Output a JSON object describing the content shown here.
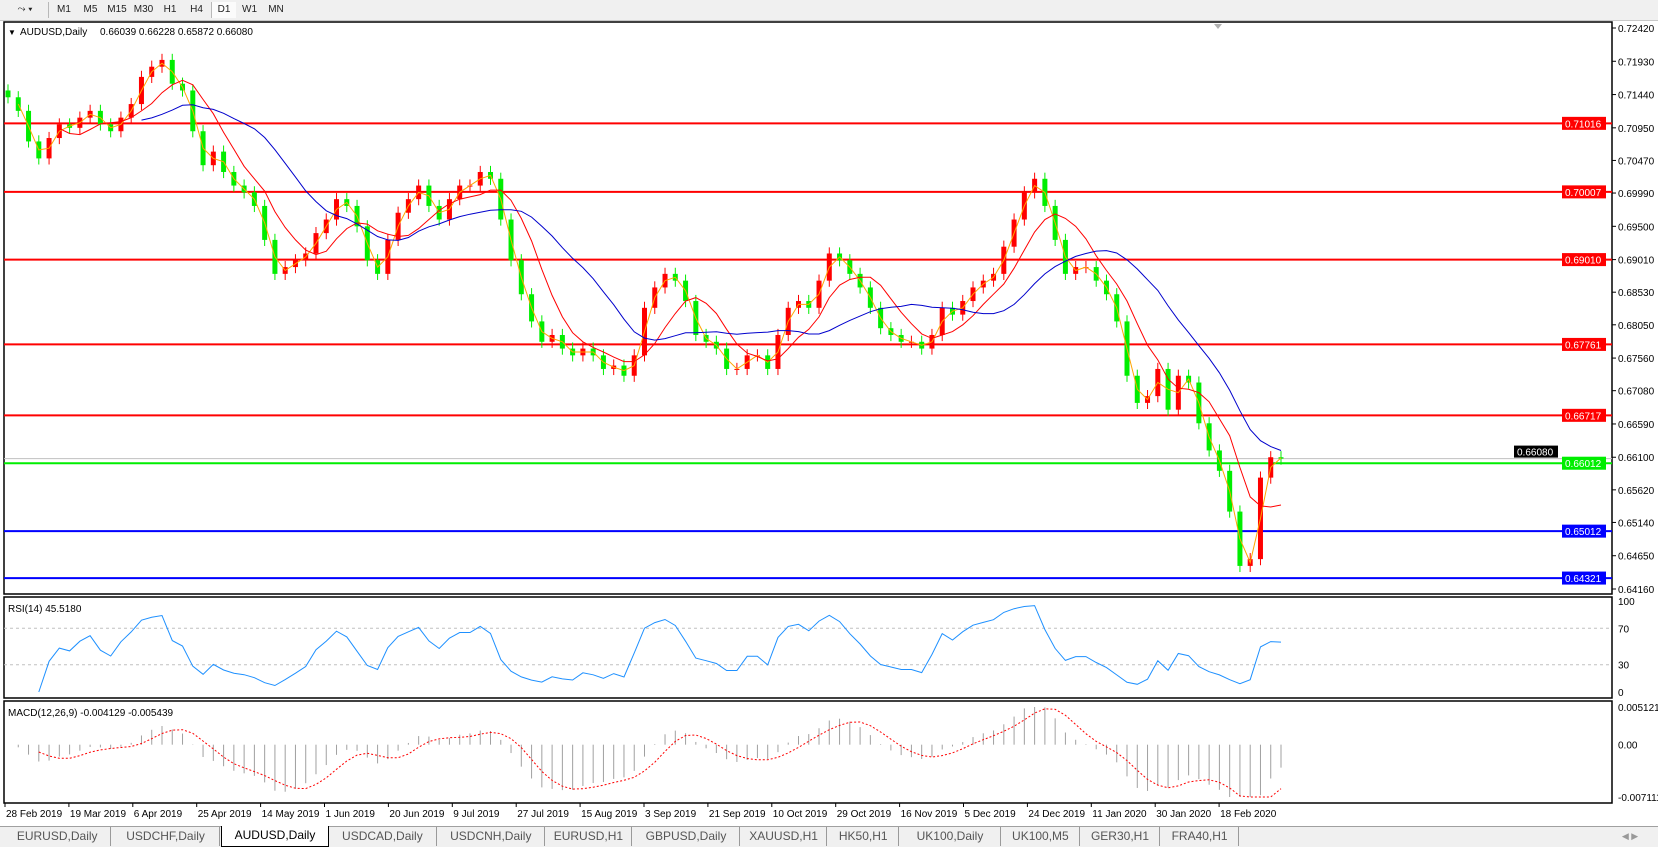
{
  "toolbar": {
    "tool_icon": "line-tools-icon",
    "timeframes": [
      "M1",
      "M5",
      "M15",
      "M30",
      "H1",
      "H4",
      "D1",
      "W1",
      "MN"
    ],
    "active_timeframe": "D1"
  },
  "chart_data": {
    "type": "candlestick",
    "title": "AUDUSD,Daily",
    "ohlc_readout": "0.66039 0.66228 0.65872 0.66080",
    "bullish_color": "#ff0000",
    "bearish_color": "#00ee00",
    "close_samples": [
      0.714,
      0.712,
      0.7075,
      0.705,
      0.708,
      0.71,
      0.7095,
      0.711,
      0.712,
      0.71,
      0.709,
      0.711,
      0.713,
      0.717,
      0.7185,
      0.7195,
      0.716,
      0.715,
      0.709,
      0.704,
      0.706,
      0.703,
      0.701,
      0.7,
      0.698,
      0.693,
      0.688,
      0.689,
      0.69,
      0.691,
      0.694,
      0.696,
      0.699,
      0.698,
      0.695,
      0.69,
      0.688,
      0.693,
      0.697,
      0.699,
      0.701,
      0.698,
      0.696,
      0.699,
      0.701,
      0.701,
      0.703,
      0.702,
      0.696,
      0.69,
      0.685,
      0.681,
      0.678,
      0.679,
      0.677,
      0.676,
      0.677,
      0.676,
      0.674,
      0.6745,
      0.673,
      0.676,
      0.683,
      0.686,
      0.688,
      0.687,
      0.684,
      0.679,
      0.678,
      0.677,
      0.674,
      0.674,
      0.676,
      0.676,
      0.674,
      0.679,
      0.683,
      0.684,
      0.683,
      0.687,
      0.691,
      0.69,
      0.688,
      0.686,
      0.683,
      0.68,
      0.679,
      0.678,
      0.678,
      0.677,
      0.679,
      0.683,
      0.682,
      0.684,
      0.686,
      0.687,
      0.688,
      0.692,
      0.696,
      0.7,
      0.702,
      0.698,
      0.693,
      0.688,
      0.689,
      0.689,
      0.687,
      0.685,
      0.681,
      0.673,
      0.669,
      0.67,
      0.674,
      0.668,
      0.673,
      0.672,
      0.666,
      0.662,
      0.659,
      0.653,
      0.645,
      0.646,
      0.658,
      0.661,
      0.6608
    ],
    "ma_colors": [
      "#ffa500",
      "#ff0000",
      "#0000cc"
    ],
    "y_axis": {
      "range": [
        0.6416,
        0.7242
      ],
      "ticks": [
        "0.72420",
        "0.71930",
        "0.71440",
        "0.70950",
        "0.70470",
        "0.69990",
        "0.69500",
        "0.69010",
        "0.68530",
        "0.68050",
        "0.67560",
        "0.67080",
        "0.66590",
        "0.66100",
        "0.65620",
        "0.65140",
        "0.64650",
        "0.64160"
      ]
    },
    "x_axis": {
      "ticks": [
        "28 Feb 2019",
        "19 Mar 2019",
        "6 Apr 2019",
        "25 Apr 2019",
        "14 May 2019",
        "1 Jun 2019",
        "20 Jun 2019",
        "9 Jul 2019",
        "27 Jul 2019",
        "15 Aug 2019",
        "3 Sep 2019",
        "21 Sep 2019",
        "10 Oct 2019",
        "29 Oct 2019",
        "16 Nov 2019",
        "5 Dec 2019",
        "24 Dec 2019",
        "11 Jan 2020",
        "30 Jan 2020",
        "18 Feb 2020"
      ]
    },
    "levels": [
      {
        "price": 0.71016,
        "label": "0.71016",
        "color": "#ff0000"
      },
      {
        "price": 0.70007,
        "label": "0.70007",
        "color": "#ff0000"
      },
      {
        "price": 0.6901,
        "label": "0.69010",
        "color": "#ff0000"
      },
      {
        "price": 0.67761,
        "label": "0.67761",
        "color": "#ff0000"
      },
      {
        "price": 0.66717,
        "label": "0.66717",
        "color": "#ff0000"
      },
      {
        "price": 0.66012,
        "label": "0.66012",
        "color": "#00ee00"
      },
      {
        "price": 0.65012,
        "label": "0.65012",
        "color": "#0000ff"
      },
      {
        "price": 0.64321,
        "label": "0.64321",
        "color": "#0000ff"
      }
    ],
    "current_price": {
      "price": 0.6608,
      "label": "0.66080"
    },
    "rsi": {
      "label": "RSI(14) 45.5180",
      "range": [
        0,
        100
      ],
      "ticks": [
        "100",
        "70",
        "30",
        "0"
      ],
      "levels": [
        70,
        30
      ],
      "color": "#1e90ff"
    },
    "macd": {
      "label": "MACD(12,26,9) -0.004129 -0.005439",
      "ticks": [
        "0.005121",
        "0.00",
        "-0.007111"
      ],
      "range": [
        -0.007111,
        0.005121
      ],
      "histogram_color": "#a0a0a0",
      "signal_color": "#ff0000"
    }
  },
  "tabs": [
    "EURUSD,Daily",
    "USDCHF,Daily",
    "AUDUSD,Daily",
    "USDCAD,Daily",
    "USDCNH,Daily",
    "EURUSD,H1",
    "GBPUSD,Daily",
    "XAUUSD,H1",
    "HK50,H1",
    "UK100,Daily",
    "UK100,M5",
    "GER30,H1",
    "FRA40,H1"
  ],
  "active_tab": "AUDUSD,Daily"
}
